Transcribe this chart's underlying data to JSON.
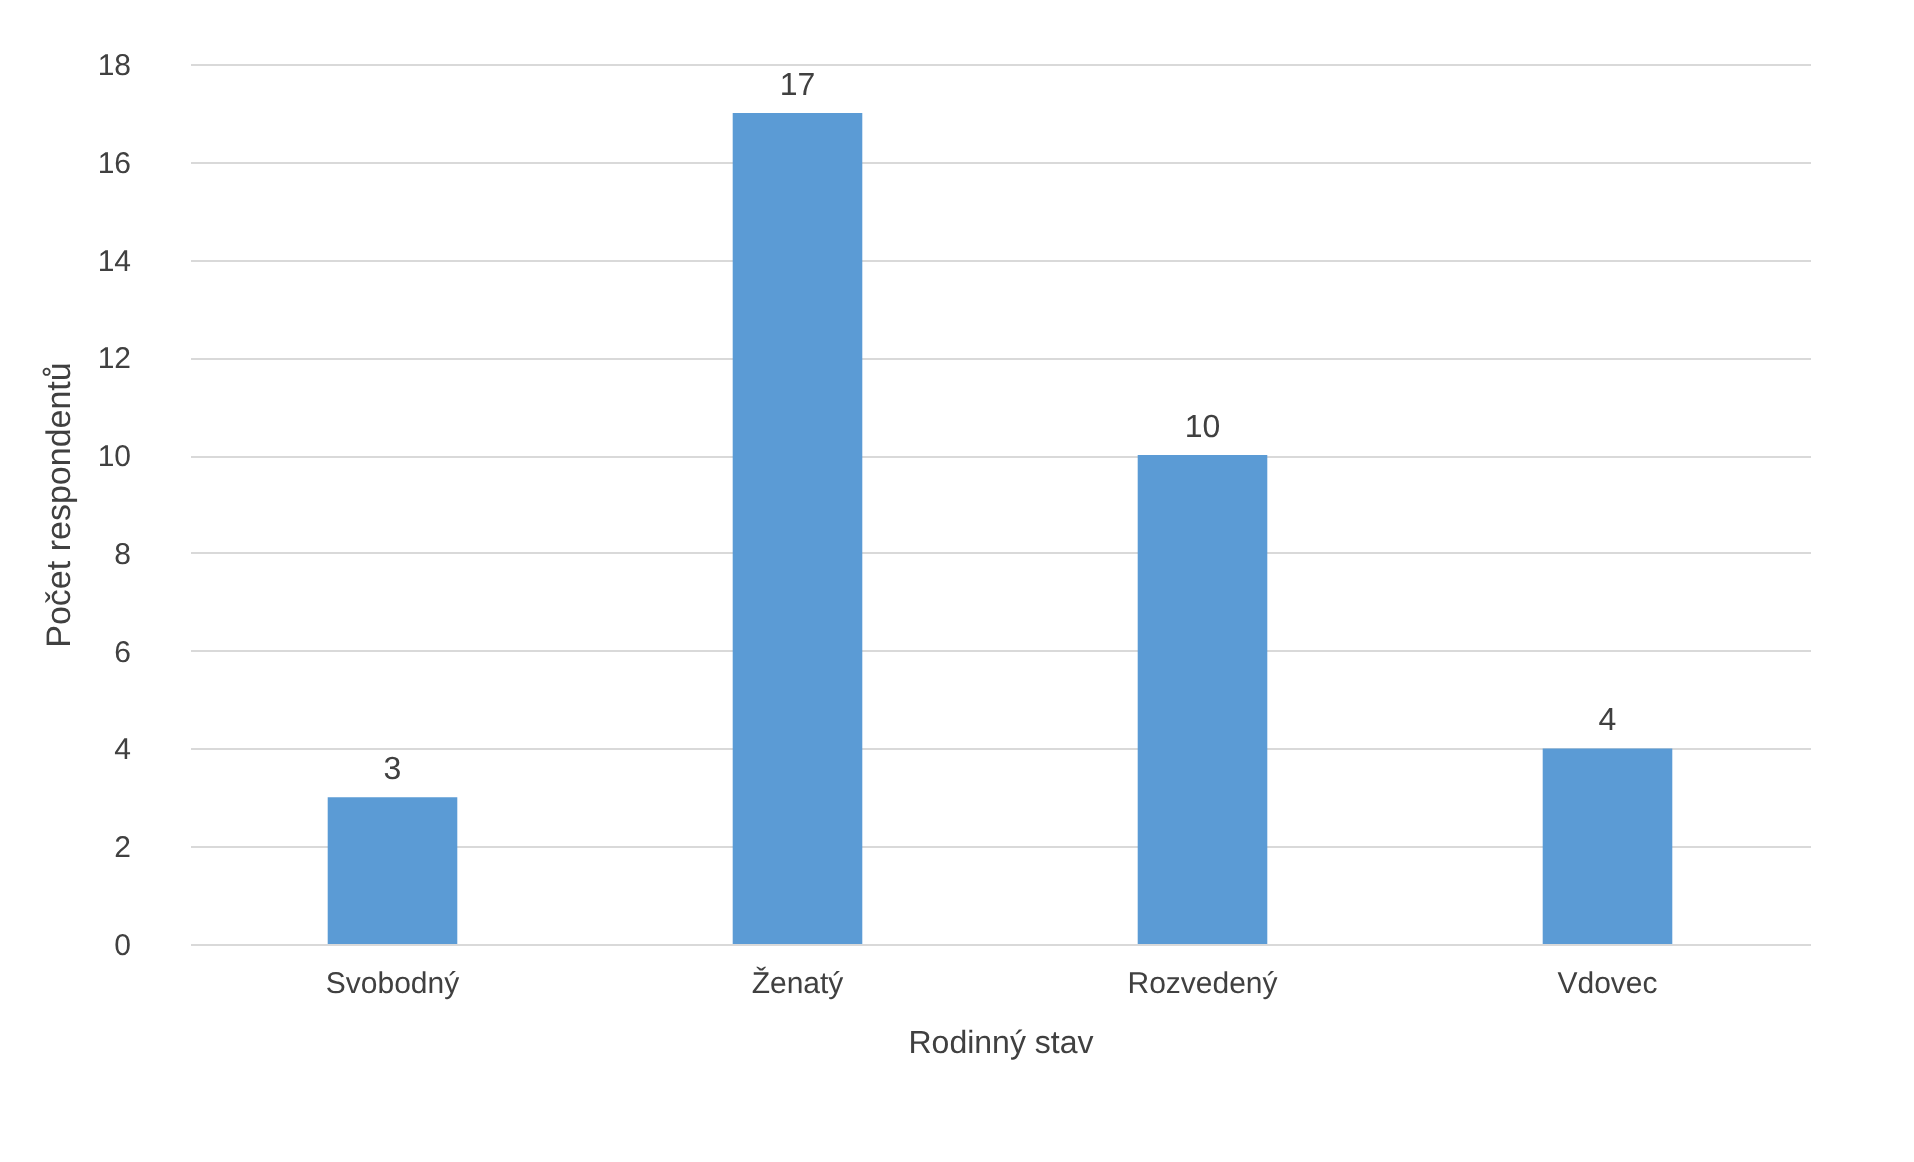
{
  "chart_data": {
    "type": "bar",
    "xlabel": "Rodinný stav",
    "ylabel": "Počet respondentů",
    "categories": [
      "Svobodný",
      "Ženatý",
      "Rozvedený",
      "Vdovec"
    ],
    "values": [
      3,
      17,
      10,
      4
    ],
    "color": "#5b9bd5",
    "ylim": [
      0,
      18
    ],
    "yticks": [
      0,
      2,
      4,
      6,
      8,
      10,
      12,
      14,
      16,
      18
    ],
    "grid": "y",
    "data_labels": true
  }
}
